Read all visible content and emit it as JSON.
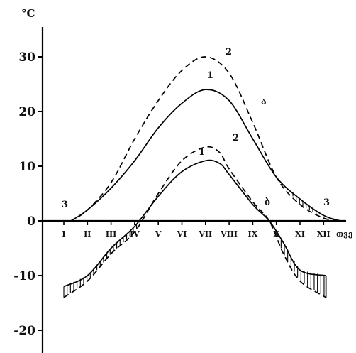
{
  "chart_data": {
    "type": "line",
    "ylabel": "°C",
    "xlabel": "თვე",
    "ylim": [
      -24,
      35
    ],
    "categories": [
      "I",
      "II",
      "III",
      "IV",
      "V",
      "VI",
      "VII",
      "VIII",
      "IX",
      "X",
      "XI",
      "XII"
    ],
    "y_ticks": [
      -20,
      -10,
      0,
      10,
      20,
      30
    ],
    "grid": false,
    "curve_labels": [
      {
        "text": "1",
        "series": "upper-1"
      },
      {
        "text": "2",
        "series": "upper-2"
      },
      {
        "text": "1",
        "series": "lower-1"
      },
      {
        "text": "2",
        "series": "lower-2"
      },
      {
        "text": "3",
        "note": "left end of upper curves"
      },
      {
        "text": "3",
        "note": "right end of upper curves"
      }
    ],
    "annotations": [
      "ა",
      "ბ"
    ],
    "series": [
      {
        "key": "upper-1",
        "style": "solid",
        "x": [
          0.3,
          1,
          2,
          3,
          4,
          5,
          6,
          7,
          8,
          9,
          10,
          11,
          11.7
        ],
        "values": [
          0,
          2,
          6,
          11,
          17,
          21.5,
          24,
          22,
          15,
          8,
          4,
          1,
          0
        ]
      },
      {
        "key": "upper-2",
        "style": "dashed",
        "x": [
          0.3,
          1,
          2,
          3,
          4,
          5,
          6,
          7,
          8,
          9,
          10,
          11,
          11.7
        ],
        "values": [
          0,
          2,
          7,
          15,
          22,
          27.5,
          30,
          27,
          18,
          8,
          3,
          0.5,
          0
        ]
      },
      {
        "key": "lower-1",
        "style": "solid",
        "x": [
          0,
          1,
          2,
          3,
          4,
          5,
          6,
          6.6,
          7,
          8,
          8.7,
          9.3,
          10,
          11.1
        ],
        "values": [
          -12,
          -10,
          -5,
          -1,
          4.5,
          9,
          11,
          10.5,
          8.5,
          3,
          0,
          -4,
          -9,
          -10
        ]
      },
      {
        "key": "lower-2",
        "style": "dashed",
        "x": [
          0,
          1,
          2,
          3,
          4,
          5,
          6,
          6.6,
          7,
          8,
          8.7,
          9.3,
          10,
          11.1
        ],
        "values": [
          -14,
          -11,
          -6,
          -2,
          5,
          11,
          13.5,
          12.5,
          9.5,
          3.5,
          0,
          -6,
          -11,
          -14
        ]
      }
    ]
  }
}
